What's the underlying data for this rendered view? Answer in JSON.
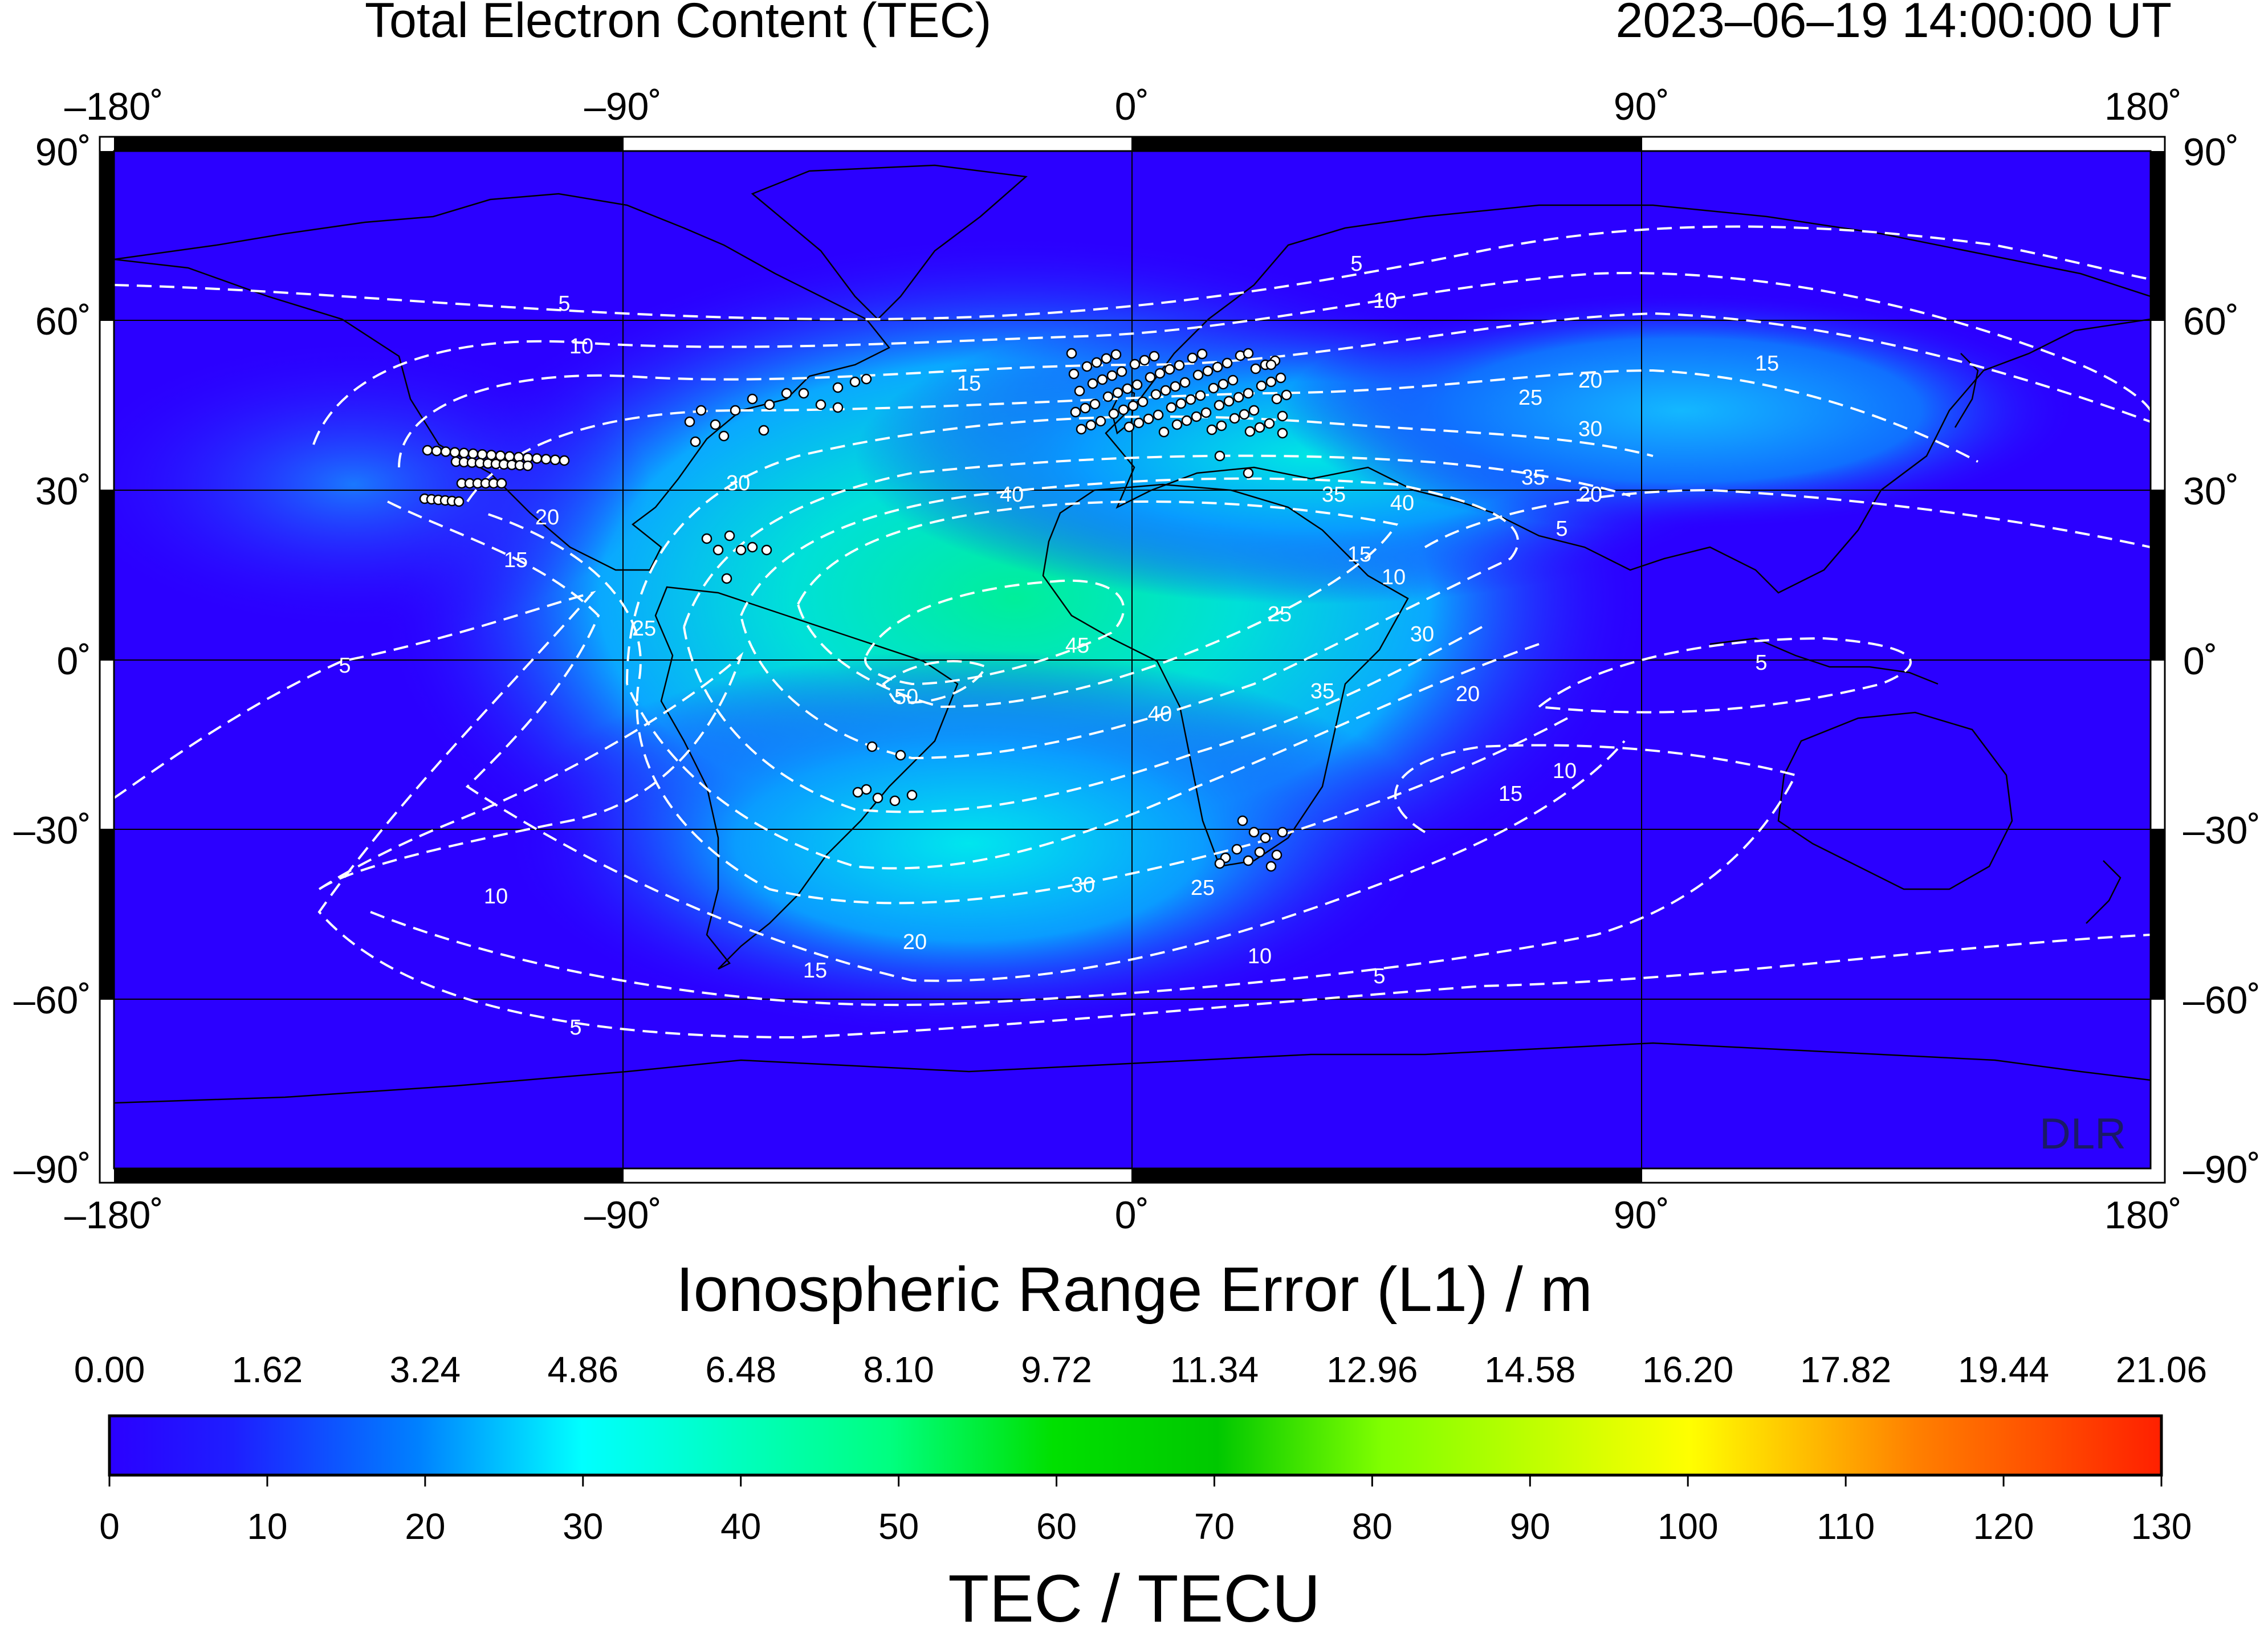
{
  "header": {
    "title": "Total Electron Content (TEC)",
    "timestamp": "2023–06–19  14:00:00 UT"
  },
  "map": {
    "lon_labels": [
      "–180˚",
      "–90˚",
      "0˚",
      "90˚",
      "180˚"
    ],
    "lat_labels": [
      "90˚",
      "60˚",
      "30˚",
      "0˚",
      "–30˚",
      "–60˚",
      "–90˚"
    ],
    "watermark": "DLR",
    "contour_levels": [
      "5",
      "10",
      "15",
      "20",
      "25",
      "30",
      "35",
      "40",
      "45",
      "50"
    ],
    "station_marker_color": "#ffffff",
    "contour_color": "#ffffff",
    "coastline_color": "#000000"
  },
  "colorbar": {
    "top_title": "Ionospheric Range Error (L1) / m",
    "top_ticks": [
      "0.00",
      "1.62",
      "3.24",
      "4.86",
      "6.48",
      "8.10",
      "9.72",
      "11.34",
      "12.96",
      "14.58",
      "16.20",
      "17.82",
      "19.44",
      "21.06"
    ],
    "bottom_ticks": [
      "0",
      "10",
      "20",
      "30",
      "40",
      "50",
      "60",
      "70",
      "80",
      "90",
      "100",
      "110",
      "120",
      "130"
    ],
    "bottom_title": "TEC / TECU",
    "colors": [
      "#2b00ff",
      "#1e1eff",
      "#0080ff",
      "#00ffff",
      "#00ff80",
      "#00e000",
      "#00c800",
      "#80ff00",
      "#ffff00",
      "#ff8000",
      "#ff2000"
    ]
  }
}
